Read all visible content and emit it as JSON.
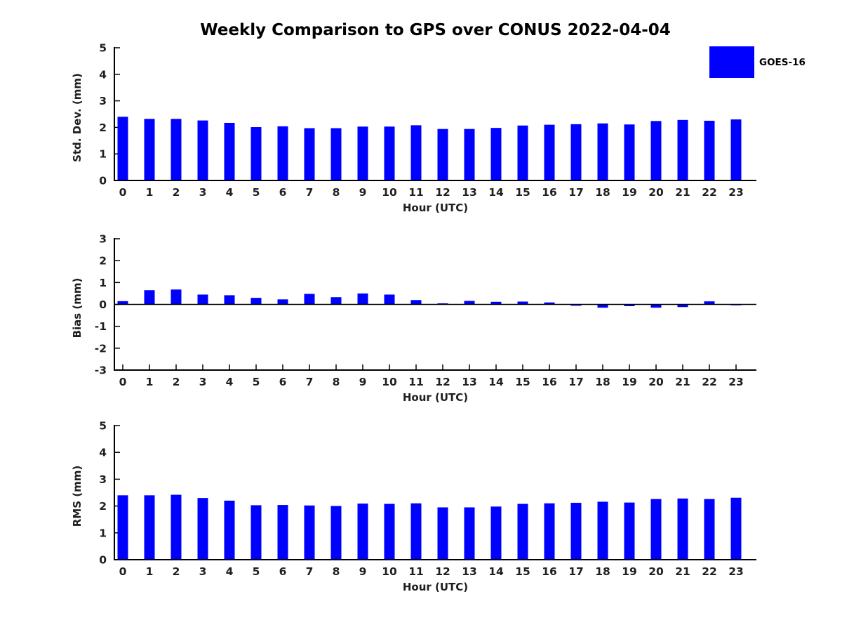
{
  "figure": {
    "title": "Weekly Comparison to GPS over CONUS 2022-04-04"
  },
  "legend": {
    "position": "upper-right",
    "items": [
      {
        "label": "GOES-16",
        "color": "#0000ff",
        "swatch_icon": "legend-color-box"
      }
    ]
  },
  "colors": {
    "bar": "#0000ff",
    "axis": "#000000",
    "text": "#1f1f1f",
    "background": "#ffffff"
  },
  "chart_data": [
    {
      "id": "std-dev",
      "type": "bar",
      "title": "",
      "xlabel": "Hour (UTC)",
      "ylabel": "Std. Dev. (mm)",
      "ylim": [
        0,
        5
      ],
      "yticks": [
        0,
        1,
        2,
        3,
        4,
        5
      ],
      "grid": false,
      "legend_entry": "GOES-16",
      "categories": [
        "0",
        "1",
        "2",
        "3",
        "4",
        "5",
        "6",
        "7",
        "8",
        "9",
        "10",
        "11",
        "12",
        "13",
        "14",
        "15",
        "16",
        "17",
        "18",
        "19",
        "20",
        "21",
        "22",
        "23"
      ],
      "series": [
        {
          "name": "GOES-16",
          "values": [
            2.4,
            2.32,
            2.32,
            2.26,
            2.17,
            2.01,
            2.04,
            1.97,
            1.97,
            2.03,
            2.03,
            2.08,
            1.94,
            1.94,
            1.98,
            2.07,
            2.1,
            2.12,
            2.15,
            2.11,
            2.24,
            2.28,
            2.25,
            2.3
          ]
        }
      ]
    },
    {
      "id": "bias",
      "type": "bar",
      "title": "",
      "xlabel": "Hour (UTC)",
      "ylabel": "Bias (mm)",
      "ylim": [
        -3,
        3
      ],
      "yticks": [
        -3,
        -2,
        -1,
        0,
        1,
        2,
        3
      ],
      "grid": false,
      "legend_entry": "GOES-16",
      "categories": [
        "0",
        "1",
        "2",
        "3",
        "4",
        "5",
        "6",
        "7",
        "8",
        "9",
        "10",
        "11",
        "12",
        "13",
        "14",
        "15",
        "16",
        "17",
        "18",
        "19",
        "20",
        "21",
        "22",
        "23"
      ],
      "series": [
        {
          "name": "GOES-16",
          "values": [
            0.15,
            0.65,
            0.68,
            0.45,
            0.42,
            0.3,
            0.23,
            0.48,
            0.33,
            0.5,
            0.45,
            0.2,
            0.05,
            0.16,
            0.12,
            0.13,
            0.09,
            -0.06,
            -0.15,
            -0.08,
            -0.15,
            -0.12,
            0.14,
            -0.04
          ]
        }
      ]
    },
    {
      "id": "rms",
      "type": "bar",
      "title": "",
      "xlabel": "Hour (UTC)",
      "ylabel": "RMS (mm)",
      "ylim": [
        0,
        5
      ],
      "yticks": [
        0,
        1,
        2,
        3,
        4,
        5
      ],
      "grid": false,
      "legend_entry": "GOES-16",
      "categories": [
        "0",
        "1",
        "2",
        "3",
        "4",
        "5",
        "6",
        "7",
        "8",
        "9",
        "10",
        "11",
        "12",
        "13",
        "14",
        "15",
        "16",
        "17",
        "18",
        "19",
        "20",
        "21",
        "22",
        "23"
      ],
      "series": [
        {
          "name": "GOES-16",
          "values": [
            2.4,
            2.4,
            2.42,
            2.3,
            2.2,
            2.03,
            2.04,
            2.02,
            2.0,
            2.09,
            2.08,
            2.1,
            1.95,
            1.95,
            1.98,
            2.08,
            2.1,
            2.12,
            2.16,
            2.13,
            2.26,
            2.28,
            2.26,
            2.31
          ]
        }
      ]
    }
  ]
}
